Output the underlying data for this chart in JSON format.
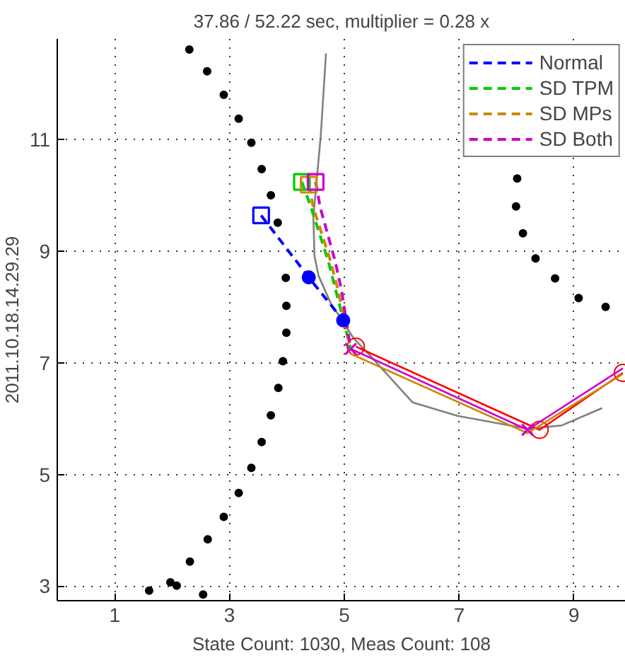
{
  "chart_data": {
    "type": "line",
    "title": "37.86 / 52.22 sec, multiplier = 0.28 x",
    "xlabel": "State Count: 1030, Meas Count: 108",
    "ylabel": "2011.10.18.14.29.29",
    "xlim": [
      0,
      9.9
    ],
    "ylim": [
      2.74,
      12.8
    ],
    "xticks": [
      1,
      3,
      5,
      7,
      9
    ],
    "yticks": [
      3,
      5,
      7,
      9,
      11
    ],
    "grid": true,
    "legend": "top right",
    "series": [
      {
        "type": "scatter",
        "marker": "circle",
        "color": "#000000",
        "x": [
          2.3,
          2.61,
          2.9,
          3.16,
          3.38,
          3.56,
          3.72,
          3.84,
          3.98,
          3.99,
          3.99,
          3.93,
          3.85,
          3.72,
          3.56,
          3.38,
          3.16,
          2.9,
          2.62,
          2.31,
          1.97,
          2.08,
          1.6,
          2.54,
          8.01,
          7.99,
          8.11,
          8.33,
          8.67,
          9.08,
          9.55
        ],
        "values": [
          12.61,
          12.22,
          11.8,
          11.37,
          10.94,
          10.47,
          10.0,
          9.51,
          8.52,
          8.02,
          7.54,
          7.03,
          6.55,
          6.06,
          5.58,
          5.12,
          4.67,
          4.24,
          3.84,
          3.44,
          3.07,
          3.01,
          2.92,
          2.85,
          10.3,
          9.8,
          9.32,
          8.87,
          8.51,
          8.16,
          8.0
        ]
      },
      {
        "type": "line",
        "line_style": "solid",
        "marker": "none",
        "color": "#808080",
        "x": [
          4.68,
          4.59,
          4.46,
          4.48,
          4.55,
          4.77,
          4.9,
          5.16,
          5.42,
          6.19,
          6.97,
          8.19,
          8.79,
          9.49
        ],
        "values": [
          12.54,
          11.08,
          9.61,
          8.91,
          8.56,
          8.05,
          7.86,
          7.44,
          7.16,
          6.29,
          6.05,
          5.82,
          5.88,
          6.19
        ]
      },
      {
        "type": "line",
        "line_style": "solid",
        "marker": "circle",
        "color": "#ff0000",
        "x": [
          5.2,
          8.4,
          9.85
        ],
        "values": [
          7.29,
          5.8,
          6.82
        ]
      },
      {
        "line_style": "solid",
        "marker": "none",
        "color": "#cc8800",
        "x": [
          5.11,
          8.19,
          9.85
        ],
        "values": [
          7.16,
          5.74,
          6.8
        ]
      },
      {
        "type": "line",
        "line_style": "solid",
        "marker": "none",
        "color": "#cc00cc",
        "x": [
          5.11,
          8.19,
          9.85
        ],
        "values": [
          7.25,
          5.8,
          6.9
        ]
      },
      {
        "type": "scatter",
        "marker": "cross",
        "color": "#cc00cc",
        "x": [
          5.11,
          8.19
        ],
        "values": [
          7.25,
          5.8
        ]
      },
      {
        "type": "line",
        "line_style": "dashed",
        "marker": "none",
        "name": "Normal",
        "color": "#0000ff",
        "x": [
          3.55,
          4.38,
          4.98
        ],
        "values": [
          9.64,
          8.53,
          7.76
        ]
      },
      {
        "type": "line",
        "line_style": "dashed",
        "marker": "none",
        "name": "SD TPM",
        "color": "#00cc00",
        "x": [
          4.26,
          4.42,
          4.72,
          4.85,
          5.11
        ],
        "values": [
          10.24,
          9.78,
          8.82,
          8.3,
          7.25
        ]
      },
      {
        "type": "line",
        "line_style": "dashed",
        "marker": "none",
        "name": "SD MPs",
        "color": "#cc8800",
        "x": [
          4.38,
          4.46,
          4.76,
          4.89,
          5.11
        ],
        "values": [
          10.19,
          9.78,
          8.82,
          8.3,
          7.25
        ]
      },
      {
        "type": "line",
        "line_style": "dashed",
        "marker": "none",
        "name": "SD Both",
        "color": "#cc00cc",
        "x": [
          4.5,
          4.58,
          4.84,
          4.95,
          5.11
        ],
        "values": [
          10.24,
          9.78,
          8.82,
          8.3,
          7.25
        ]
      },
      {
        "type": "scatter",
        "marker": "square",
        "color": "#0000ff",
        "x": [
          3.55
        ],
        "values": [
          9.64
        ]
      },
      {
        "type": "scatter",
        "marker": "square",
        "color": "#00cc00",
        "x": [
          4.26
        ],
        "values": [
          10.24
        ]
      },
      {
        "type": "scatter",
        "marker": "square",
        "color": "#cc8800",
        "x": [
          4.38
        ],
        "values": [
          10.19
        ]
      },
      {
        "type": "scatter",
        "marker": "square",
        "color": "#cc00cc",
        "x": [
          4.5
        ],
        "values": [
          10.24
        ]
      },
      {
        "type": "scatter",
        "marker": "circle",
        "color": "#0000ff",
        "x": [
          4.38,
          4.98
        ],
        "values": [
          8.53,
          7.76
        ]
      }
    ]
  }
}
